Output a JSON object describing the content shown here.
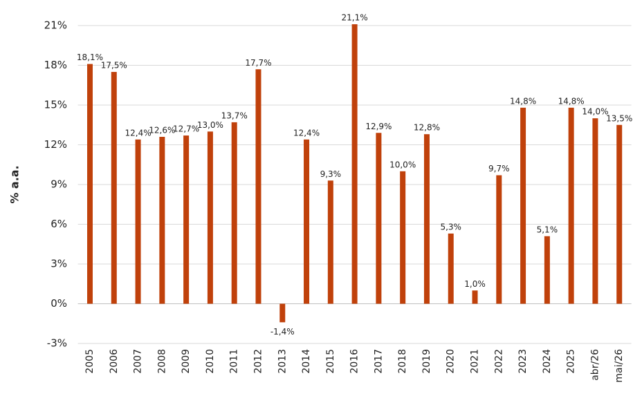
{
  "chart_data": {
    "type": "bar",
    "y_label": "% a.a.",
    "categories": [
      "2005",
      "2006",
      "2007",
      "2008",
      "2009",
      "2010",
      "2011",
      "2012",
      "2013",
      "2014",
      "2015",
      "2016",
      "2017",
      "2018",
      "2019",
      "2020",
      "2021",
      "2022",
      "2023",
      "2024",
      "2025",
      "abr/26",
      "mai/26"
    ],
    "values": [
      18.1,
      17.5,
      12.4,
      12.6,
      12.7,
      13.0,
      13.7,
      17.7,
      -1.4,
      12.4,
      9.3,
      21.1,
      12.9,
      10.0,
      12.8,
      5.3,
      1.0,
      9.7,
      14.8,
      5.1,
      14.8,
      14.0,
      13.5
    ],
    "value_labels": [
      "18,1%",
      "17,5%",
      "12,4%",
      "12,6%",
      "12,7%",
      "13,0%",
      "13,7%",
      "17,7%",
      "-1,4%",
      "12,4%",
      "9,3%",
      "21,1%",
      "12,9%",
      "10,0%",
      "12,8%",
      "5,3%",
      "1,0%",
      "9,7%",
      "14,8%",
      "5,1%",
      "14,8%",
      "14,0%",
      "13,5%"
    ],
    "color": "#c0410b",
    "ylim": [
      -3,
      21
    ],
    "yticks": [
      {
        "value": -3,
        "label": "-3%"
      },
      {
        "value": 0,
        "label": "0%"
      },
      {
        "value": 3,
        "label": "3%"
      },
      {
        "value": 6,
        "label": "6%"
      },
      {
        "value": 9,
        "label": "9%"
      },
      {
        "value": 12,
        "label": "12%"
      },
      {
        "value": 15,
        "label": "15%"
      },
      {
        "value": 18,
        "label": "18%"
      },
      {
        "value": 21,
        "label": "21%"
      }
    ],
    "grid": true
  }
}
